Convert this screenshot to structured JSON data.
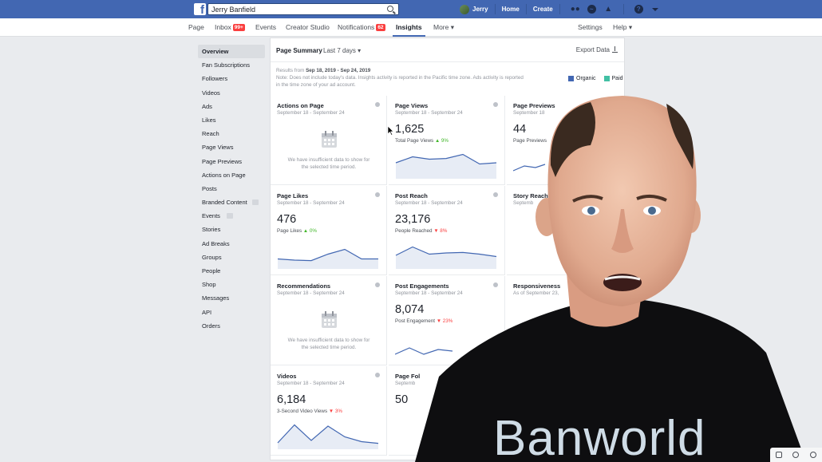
{
  "header": {
    "search_value": "Jerry Banfield",
    "user_name": "Jerry",
    "links": [
      "Home",
      "Create"
    ],
    "help_label": "?"
  },
  "page_nav": {
    "page": "Page",
    "inbox": "Inbox",
    "inbox_badge": "99+",
    "events": "Events",
    "creator_studio": "Creator Studio",
    "notifications": "Notifications",
    "notifications_badge": "62",
    "insights": "Insights",
    "more": "More ▾",
    "settings": "Settings",
    "help": "Help ▾"
  },
  "sidebar": {
    "items": [
      "Overview",
      "Fan Subscriptions",
      "Followers",
      "Videos",
      "Ads",
      "Likes",
      "Reach",
      "Page Views",
      "Page Previews",
      "Actions on Page",
      "Posts",
      "Branded Content",
      "Events",
      "Stories",
      "Ad Breaks",
      "Groups",
      "People",
      "Shop",
      "Messages",
      "API",
      "Orders"
    ]
  },
  "summary": {
    "title": "Page Summary",
    "range": "Last 7 days ▾",
    "export": "Export Data",
    "results_prefix": "Results from",
    "results_range": "Sep 18, 2019 - Sep 24, 2019",
    "note_line1": "Note: Does not include today's data. Insights activity is reported in the Pacific time zone. Ads activity is reported",
    "note_line2": "in the time zone of your ad account.",
    "legend_organic": "Organic",
    "legend_paid": "Paid",
    "organic_color": "#4267b2",
    "paid_color": "#42c0a4"
  },
  "cards": [
    {
      "title": "Actions on Page",
      "date": "September 18 - September 24",
      "insufficient_line1": "We have insufficient data to show for",
      "insufficient_line2": "the selected time period."
    },
    {
      "title": "Page Views",
      "date": "September 18 - September 24",
      "value": "1,625",
      "sub": "Total Page Views",
      "change": "▲ 9%",
      "trend": [
        0.6,
        0.85,
        0.75,
        0.78,
        0.95,
        0.55,
        0.6
      ]
    },
    {
      "title": "Page Previews",
      "date": "September 18",
      "value": "44",
      "sub": "Page Previews"
    },
    {
      "title": "Page Likes",
      "date": "September 18 - September 24",
      "value": "476",
      "sub": "Page Likes",
      "change": "▲ 0%",
      "trend": [
        0.35,
        0.3,
        0.28,
        0.55,
        0.75,
        0.35,
        0.35
      ]
    },
    {
      "title": "Post Reach",
      "date": "September 18 - September 24",
      "value": "23,176",
      "sub": "People Reached",
      "change": "▼ 8%",
      "trend": [
        0.5,
        0.85,
        0.55,
        0.6,
        0.62,
        0.55,
        0.45
      ]
    },
    {
      "title": "Story Reach",
      "date": "Septemb"
    },
    {
      "title": "Recommendations",
      "date": "September 18 - September 24",
      "insufficient_line1": "We have insufficient data to show for",
      "insufficient_line2": "the selected time period."
    },
    {
      "title": "Post Engagements",
      "date": "September 18 - September 24",
      "value": "8,074",
      "sub": "Post Engagement",
      "change": "▼ 23%"
    },
    {
      "title": "Responsiveness",
      "date": "As of September 23,"
    },
    {
      "title": "Videos",
      "date": "September 18 - September 24",
      "value": "6,184",
      "sub": "3-Second Video Views",
      "change": "▼ 3%",
      "trend": [
        0.2,
        0.95,
        0.3,
        0.9,
        0.45,
        0.25,
        0.18
      ]
    },
    {
      "title": "Page Fol",
      "date": "Septemb",
      "value": "50"
    }
  ],
  "overlay": {
    "shirt_text": "Banworld"
  }
}
